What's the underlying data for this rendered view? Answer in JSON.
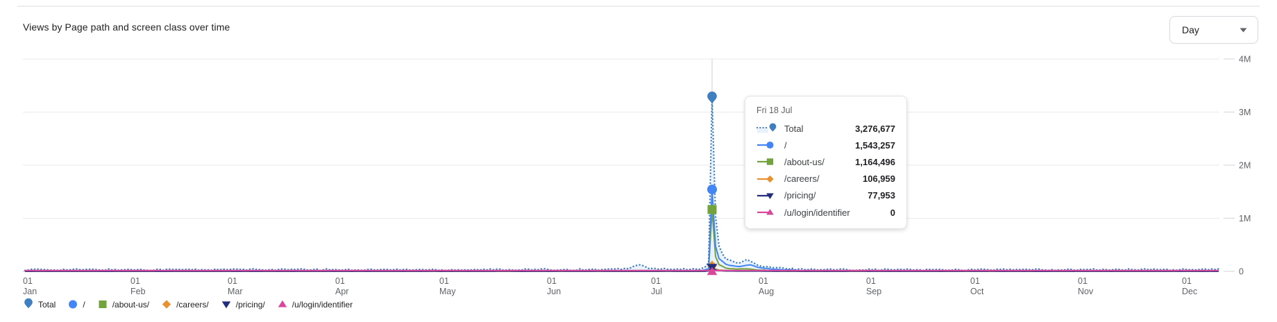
{
  "header": {
    "title": "Views by Page path and screen class over time",
    "granularity": {
      "value": "Day"
    }
  },
  "tooltip": {
    "date": "Fri 18 Jul",
    "rows": [
      {
        "label": "Total",
        "value": "3,276,677"
      },
      {
        "label": "/",
        "value": "1,543,257"
      },
      {
        "label": "/about-us/",
        "value": "1,164,496"
      },
      {
        "label": "/careers/",
        "value": "106,959"
      },
      {
        "label": "/pricing/",
        "value": "77,953"
      },
      {
        "label": "/u/login/identifier",
        "value": "0"
      }
    ]
  },
  "chart_data": {
    "type": "line",
    "title": "Views by Page path and screen class over time",
    "granularity": "Day",
    "xlabel": "",
    "ylabel": "",
    "grid": true,
    "legend_position": "bottom",
    "y_axis": {
      "position": "right",
      "range": [
        0,
        4000000
      ],
      "ticks": [
        {
          "label": "0",
          "value": 0
        },
        {
          "label": "1M",
          "value": 1000000
        },
        {
          "label": "2M",
          "value": 2000000
        },
        {
          "label": "3M",
          "value": 3000000
        },
        {
          "label": "4M",
          "value": 4000000
        }
      ]
    },
    "x_axis": {
      "type": "date",
      "ticks": [
        {
          "top": "01",
          "bottom": "Jan",
          "day_of_year": 0
        },
        {
          "top": "01",
          "bottom": "Feb",
          "day_of_year": 31
        },
        {
          "top": "01",
          "bottom": "Mar",
          "day_of_year": 59
        },
        {
          "top": "01",
          "bottom": "Apr",
          "day_of_year": 90
        },
        {
          "top": "01",
          "bottom": "May",
          "day_of_year": 120
        },
        {
          "top": "01",
          "bottom": "Jun",
          "day_of_year": 151
        },
        {
          "top": "01",
          "bottom": "Jul",
          "day_of_year": 181
        },
        {
          "top": "01",
          "bottom": "Aug",
          "day_of_year": 212
        },
        {
          "top": "01",
          "bottom": "Sep",
          "day_of_year": 243
        },
        {
          "top": "01",
          "bottom": "Oct",
          "day_of_year": 273
        },
        {
          "top": "01",
          "bottom": "Nov",
          "day_of_year": 304
        },
        {
          "top": "01",
          "bottom": "Dec",
          "day_of_year": 334
        }
      ]
    },
    "highlight": {
      "date": "Fri 18 Jul",
      "day_of_year": 198
    },
    "series": [
      {
        "name": "Total",
        "slug": "total",
        "color": "#3f7fbf",
        "line_style": "dotted",
        "marker": "pin",
        "area_fill": "#e9f1fa",
        "hover_value": 3276677,
        "keyframes": [
          [
            0,
            30000
          ],
          [
            60,
            32000
          ],
          [
            120,
            30000
          ],
          [
            170,
            33000
          ],
          [
            174,
            60000
          ],
          [
            177,
            120000
          ],
          [
            180,
            55000
          ],
          [
            186,
            34000
          ],
          [
            195,
            40000
          ],
          [
            196,
            70000
          ],
          [
            197,
            170000
          ],
          [
            198,
            3276677
          ],
          [
            199,
            1050000
          ],
          [
            200,
            480000
          ],
          [
            201,
            310000
          ],
          [
            202,
            230000
          ],
          [
            204,
            185000
          ],
          [
            206,
            160000
          ],
          [
            208,
            215000
          ],
          [
            210,
            150000
          ],
          [
            212,
            95000
          ],
          [
            215,
            70000
          ],
          [
            219,
            52000
          ],
          [
            224,
            40000
          ],
          [
            232,
            33000
          ],
          [
            260,
            30000
          ],
          [
            300,
            30000
          ],
          [
            344,
            32000
          ]
        ]
      },
      {
        "name": "/",
        "slug": "home",
        "color": "#4285f4",
        "line_style": "solid",
        "marker": "circle",
        "hover_value": 1543257,
        "keyframes": [
          [
            0,
            7000
          ],
          [
            170,
            8000
          ],
          [
            195,
            9000
          ],
          [
            197,
            50000
          ],
          [
            198,
            1543257
          ],
          [
            199,
            470000
          ],
          [
            200,
            240000
          ],
          [
            202,
            130000
          ],
          [
            204,
            100000
          ],
          [
            206,
            90000
          ],
          [
            209,
            120000
          ],
          [
            211,
            80000
          ],
          [
            214,
            50000
          ],
          [
            218,
            30000
          ],
          [
            224,
            16000
          ],
          [
            240,
            9000
          ],
          [
            344,
            8000
          ]
        ]
      },
      {
        "name": "/about-us/",
        "slug": "about-us",
        "color": "#73a33c",
        "line_style": "solid",
        "marker": "square",
        "hover_value": 1164496,
        "keyframes": [
          [
            0,
            2500
          ],
          [
            195,
            3000
          ],
          [
            197,
            35000
          ],
          [
            198,
            1164496
          ],
          [
            199,
            280000
          ],
          [
            200,
            125000
          ],
          [
            202,
            60000
          ],
          [
            205,
            40000
          ],
          [
            208,
            48000
          ],
          [
            211,
            28000
          ],
          [
            215,
            14000
          ],
          [
            222,
            6000
          ],
          [
            344,
            3000
          ]
        ]
      },
      {
        "name": "/careers/",
        "slug": "careers",
        "color": "#e9912f",
        "line_style": "solid",
        "marker": "diamond",
        "hover_value": 106959,
        "keyframes": [
          [
            0,
            1200
          ],
          [
            196,
            2000
          ],
          [
            197,
            12000
          ],
          [
            198,
            106959
          ],
          [
            199,
            42000
          ],
          [
            200,
            24000
          ],
          [
            202,
            14000
          ],
          [
            205,
            10000
          ],
          [
            209,
            16000
          ],
          [
            212,
            9000
          ],
          [
            216,
            5000
          ],
          [
            222,
            2000
          ],
          [
            344,
            1300
          ]
        ]
      },
      {
        "name": "/pricing/",
        "slug": "pricing",
        "color": "#222d7d",
        "line_style": "solid",
        "marker": "triangle-down",
        "hover_value": 77953,
        "keyframes": [
          [
            0,
            900
          ],
          [
            196,
            1500
          ],
          [
            197,
            9000
          ],
          [
            198,
            77953
          ],
          [
            199,
            26000
          ],
          [
            200,
            14000
          ],
          [
            202,
            8000
          ],
          [
            206,
            5000
          ],
          [
            210,
            6000
          ],
          [
            214,
            3000
          ],
          [
            220,
            1500
          ],
          [
            344,
            1000
          ]
        ]
      },
      {
        "name": "/u/login/identifier",
        "slug": "u-login-identifier",
        "color": "#d8479a",
        "line_style": "solid",
        "marker": "triangle-up",
        "hover_value": 0,
        "keyframes": [
          [
            0,
            0
          ],
          [
            344,
            0
          ]
        ]
      }
    ],
    "colors": {
      "grid": "#e9eaec",
      "axis": "#c6c9cc",
      "axis_text": "#5f6368",
      "highlight_line": "#dcdfe3",
      "border": "#d5d8dc"
    }
  }
}
